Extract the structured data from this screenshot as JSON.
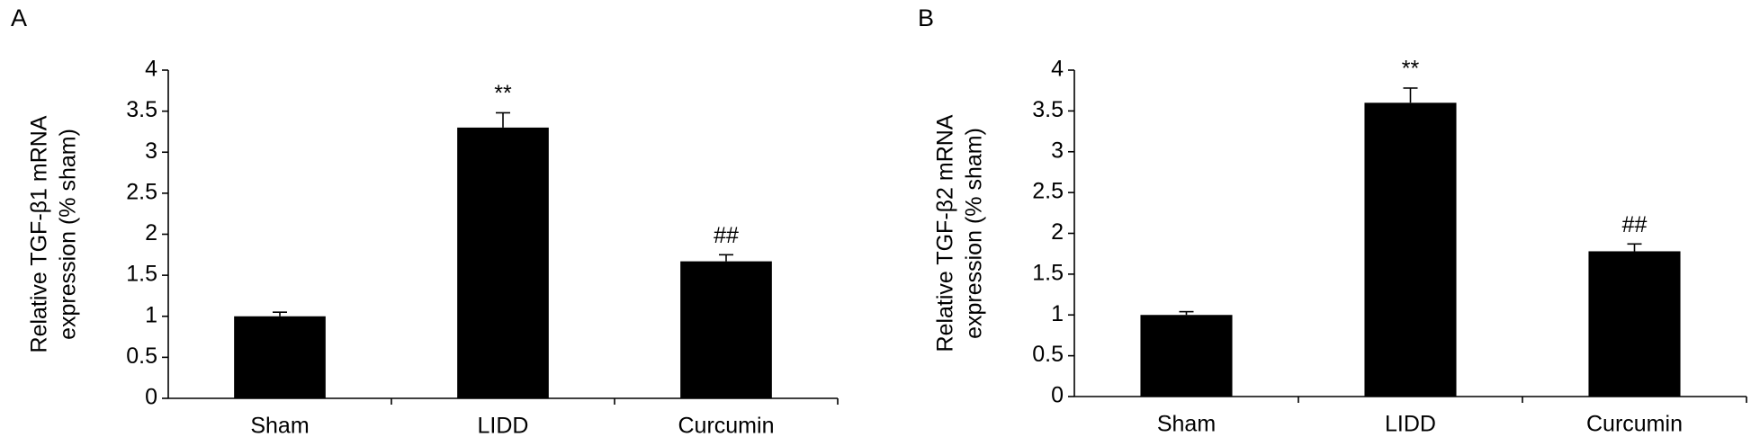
{
  "chart_data": [
    {
      "type": "bar",
      "panel": "A",
      "y_label": [
        "Relative TGF-β1 mRNA",
        "expression (% sham)"
      ],
      "categories": [
        "Sham",
        "LIDD",
        "Curcumin"
      ],
      "values": [
        1.0,
        3.3,
        1.67
      ],
      "errors": [
        0.05,
        0.18,
        0.08
      ],
      "annotations": [
        null,
        "**",
        "##"
      ],
      "color": "#000000",
      "ylim": [
        0,
        4
      ],
      "yticks": [
        0,
        0.5,
        1,
        1.5,
        2,
        2.5,
        3,
        3.5,
        4
      ]
    },
    {
      "type": "bar",
      "panel": "B",
      "y_label": [
        "Relative TGF-β2 mRNA",
        "expression (% sham)"
      ],
      "categories": [
        "Sham",
        "LIDD",
        "Curcumin"
      ],
      "values": [
        1.0,
        3.6,
        1.78
      ],
      "errors": [
        0.04,
        0.18,
        0.09
      ],
      "annotations": [
        null,
        "**",
        "##"
      ],
      "color": "#000000",
      "ylim": [
        0,
        4
      ],
      "yticks": [
        0,
        0.5,
        1,
        1.5,
        2,
        2.5,
        3,
        3.5,
        4
      ]
    }
  ]
}
